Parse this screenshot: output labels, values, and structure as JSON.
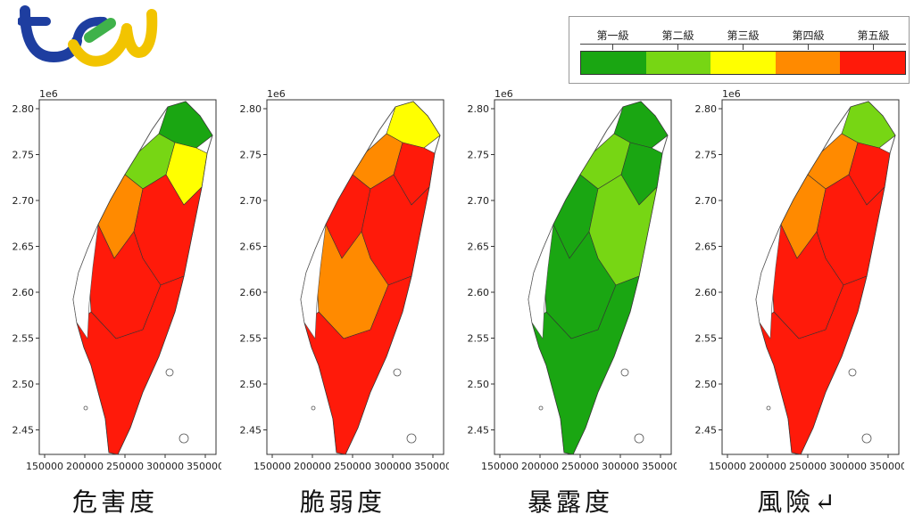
{
  "legend": {
    "levels": [
      {
        "label": "第一級",
        "color": "#1aa612"
      },
      {
        "label": "第二級",
        "color": "#77d614"
      },
      {
        "label": "第三級",
        "color": "#ffff00"
      },
      {
        "label": "第四級",
        "color": "#ff8a00"
      },
      {
        "label": "第五級",
        "color": "#ff1a0a"
      }
    ]
  },
  "axes": {
    "y_ticks": [
      "2.80",
      "2.75",
      "2.70",
      "2.65",
      "2.60",
      "2.55",
      "2.50",
      "2.45"
    ],
    "x_ticks": [
      "150000",
      "200000",
      "250000",
      "300000",
      "350000"
    ],
    "y_scale_label": "1e6"
  },
  "panels": [
    {
      "caption": "危害度",
      "scheme": [
        "#1aa612",
        "#77d614",
        "#ffff00",
        "#ff8a00",
        "#ff1a0a",
        "#ff1a0a",
        "#ff1a0a"
      ]
    },
    {
      "caption": "脆弱度",
      "scheme": [
        "#ffff00",
        "#ff8a00",
        "#ff1a0a",
        "#ff1a0a",
        "#ff1a0a",
        "#ff8a00",
        "#ff1a0a"
      ]
    },
    {
      "caption": "暴露度",
      "scheme": [
        "#1aa612",
        "#77d614",
        "#1aa612",
        "#1aa612",
        "#77d614",
        "#1aa612",
        "#1aa612"
      ]
    },
    {
      "caption": "風險↵",
      "scheme": [
        "#77d614",
        "#ff8a00",
        "#ff1a0a",
        "#ff8a00",
        "#ff1a0a",
        "#ff1a0a",
        "#ff1a0a"
      ]
    }
  ]
}
